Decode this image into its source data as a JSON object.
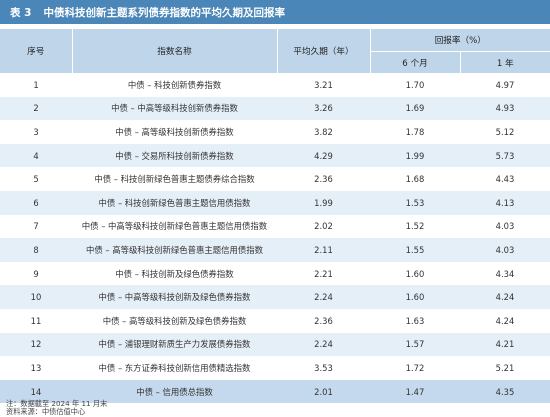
{
  "title": {
    "number": "表 3",
    "text": "中债科技创新主题系列债券指数的平均久期及回报率"
  },
  "headers": {
    "seq": "序号",
    "name": "指数名称",
    "duration": "平均久期（年）",
    "return": "回报率（%）",
    "m6": "6 个月",
    "y1": "1 年"
  },
  "rows": [
    {
      "seq": "1",
      "name": "中债 – 科技创新债券指数",
      "duration": "3.21",
      "m6": "1.70",
      "y1": "4.97"
    },
    {
      "seq": "2",
      "name": "中债 – 中高等级科技创新债券指数",
      "duration": "3.26",
      "m6": "1.69",
      "y1": "4.93"
    },
    {
      "seq": "3",
      "name": "中债 – 高等级科技创新债券指数",
      "duration": "3.82",
      "m6": "1.78",
      "y1": "5.12"
    },
    {
      "seq": "4",
      "name": "中债 – 交易所科技创新债券指数",
      "duration": "4.29",
      "m6": "1.99",
      "y1": "5.73"
    },
    {
      "seq": "5",
      "name": "中债 – 科技创新绿色普惠主题债券综合指数",
      "duration": "2.36",
      "m6": "1.68",
      "y1": "4.43"
    },
    {
      "seq": "6",
      "name": "中债 – 科技创新绿色普惠主题信用债指数",
      "duration": "1.99",
      "m6": "1.53",
      "y1": "4.13"
    },
    {
      "seq": "7",
      "name": "中债 – 中高等级科技创新绿色普惠主题信用债指数",
      "duration": "2.02",
      "m6": "1.52",
      "y1": "4.03"
    },
    {
      "seq": "8",
      "name": "中债 – 高等级科技创新绿色普惠主题信用债指数",
      "duration": "2.11",
      "m6": "1.55",
      "y1": "4.03"
    },
    {
      "seq": "9",
      "name": "中债 – 科技创新及绿色债券指数",
      "duration": "2.21",
      "m6": "1.60",
      "y1": "4.34"
    },
    {
      "seq": "10",
      "name": "中债 – 中高等级科技创新及绿色债券指数",
      "duration": "2.24",
      "m6": "1.60",
      "y1": "4.24"
    },
    {
      "seq": "11",
      "name": "中债 – 高等级科技创新及绿色债券指数",
      "duration": "2.36",
      "m6": "1.63",
      "y1": "4.24"
    },
    {
      "seq": "12",
      "name": "中债 – 浦银理财新质生产力发展债券指数",
      "duration": "2.24",
      "m6": "1.57",
      "y1": "4.21"
    },
    {
      "seq": "13",
      "name": "中债 – 东方证券科技创新信用债精选指数",
      "duration": "3.53",
      "m6": "1.72",
      "y1": "5.21"
    },
    {
      "seq": "14",
      "name": "中债 – 信用债总指数",
      "duration": "2.01",
      "m6": "1.47",
      "y1": "4.35"
    }
  ],
  "notes": {
    "note": "注：数据截至 2024 年 11 月末",
    "source": "资料来源：中债估值中心"
  },
  "colors": {
    "title_bg": "#4a86b8",
    "header_bg": "#bfd5ea",
    "stripe": "#e5eff8",
    "summary_row": "#c4d9ed"
  }
}
